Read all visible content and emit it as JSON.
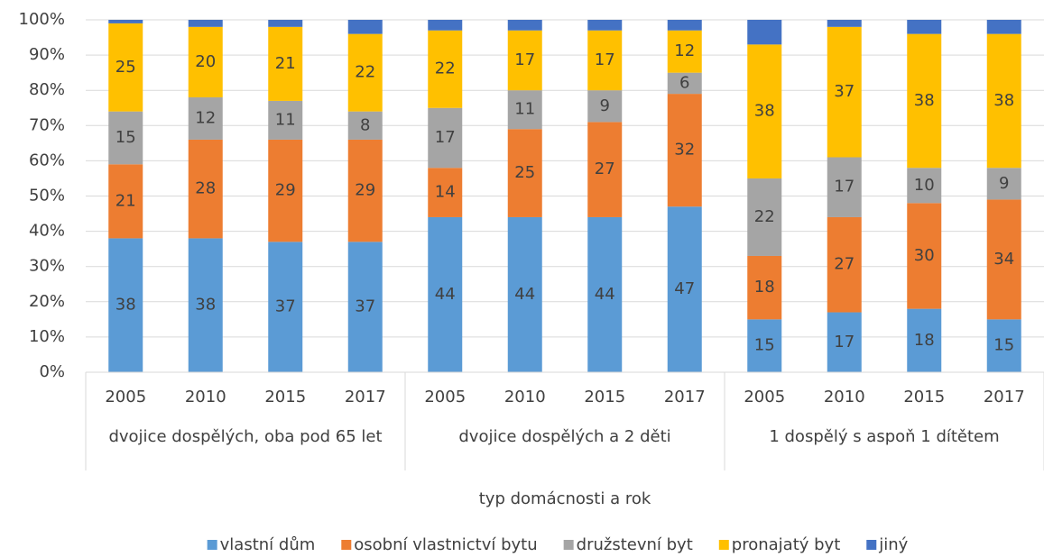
{
  "chart_data": {
    "type": "stacked_bar_100",
    "groups": [
      {
        "name": "dvojice dospělých, oba pod 65 let",
        "categories": [
          "2005",
          "2010",
          "2015",
          "2017"
        ]
      },
      {
        "name": "dvojice dospělých a 2 děti",
        "categories": [
          "2005",
          "2010",
          "2015",
          "2017"
        ]
      },
      {
        "name": "1 dospělý s aspoň 1 dítětem",
        "categories": [
          "2005",
          "2010",
          "2015",
          "2017"
        ]
      }
    ],
    "series": [
      {
        "name": "vlastní dům",
        "color": "#5b9bd5",
        "data_labels": true,
        "values": [
          38,
          38,
          37,
          37,
          44,
          44,
          44,
          47,
          15,
          17,
          18,
          15
        ]
      },
      {
        "name": "osobní vlastnictví bytu",
        "color": "#ed7d31",
        "data_labels": true,
        "values": [
          21,
          28,
          29,
          29,
          14,
          25,
          27,
          32,
          18,
          27,
          30,
          34
        ]
      },
      {
        "name": "družstevní byt",
        "color": "#a5a5a5",
        "data_labels": true,
        "values": [
          15,
          12,
          11,
          8,
          17,
          11,
          9,
          6,
          22,
          17,
          10,
          9
        ]
      },
      {
        "name": "pronajatý byt",
        "color": "#ffc000",
        "data_labels": true,
        "values": [
          25,
          20,
          21,
          22,
          22,
          17,
          17,
          12,
          38,
          37,
          38,
          38
        ]
      },
      {
        "name": "jiný",
        "color": "#4472c4",
        "data_labels": false,
        "values": [
          1,
          2,
          2,
          4,
          3,
          3,
          3,
          3,
          7,
          2,
          4,
          4
        ]
      }
    ],
    "x_label": "typ domácnosti a rok",
    "ylim": [
      0,
      100
    ],
    "yticks": [
      {
        "value": 0,
        "label": "0%"
      },
      {
        "value": 10,
        "label": "10%"
      },
      {
        "value": 20,
        "label": "20%"
      },
      {
        "value": 30,
        "label": "30%"
      },
      {
        "value": 40,
        "label": "40%"
      },
      {
        "value": 50,
        "label": "50%"
      },
      {
        "value": 60,
        "label": "60%"
      },
      {
        "value": 70,
        "label": "70%"
      },
      {
        "value": 80,
        "label": "80%"
      },
      {
        "value": 90,
        "label": "90%"
      },
      {
        "value": 100,
        "label": "100%"
      }
    ],
    "grid": true,
    "legend": "bottom"
  }
}
